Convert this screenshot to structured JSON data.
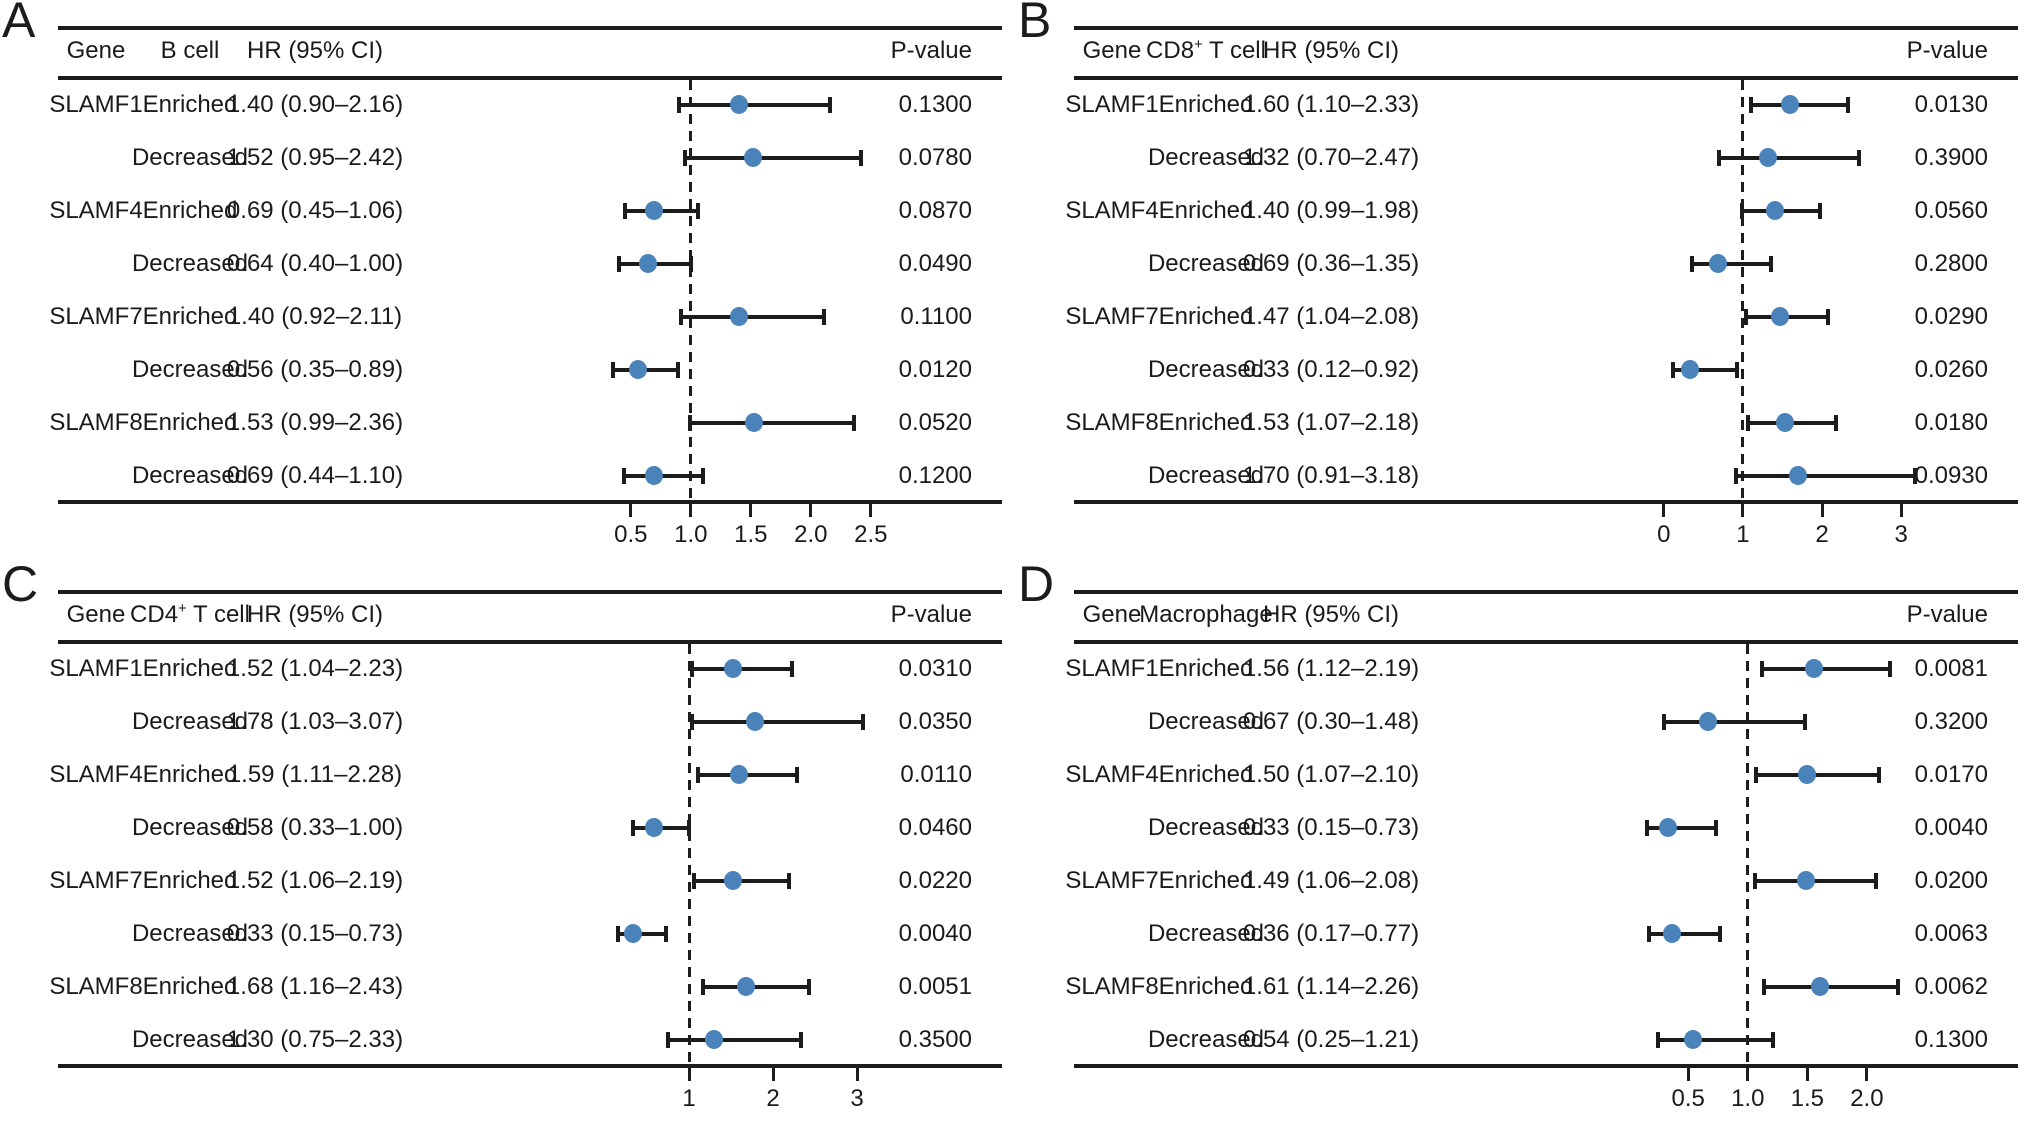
{
  "style": {
    "marker_color": "#4a82ba",
    "line_color": "#1c1c1c",
    "text_color": "#1a1a1a",
    "background": "#ffffff"
  },
  "chart_data": [
    {
      "type": "forest",
      "panel_label": "A",
      "columns": {
        "gene": "Gene",
        "hr": "HR (95% CI)",
        "p": "P-value"
      },
      "cell_parts": [
        "B cell",
        "",
        ""
      ],
      "axis": {
        "xmin": 0.16,
        "xmax": 2.91,
        "reference": 1.0,
        "ticks": [
          0.5,
          1.0,
          1.5,
          2.0,
          2.5
        ],
        "tick_labels": [
          "0.5",
          "1.0",
          "1.5",
          "2.0",
          "2.5"
        ]
      },
      "rows": [
        {
          "gene": "SLAMF1",
          "group": "Enriched",
          "hr": 1.4,
          "lo": 0.9,
          "hi": 2.16,
          "hr_label": "1.40 (0.90–2.16)",
          "p": "0.1300"
        },
        {
          "gene": "",
          "group": "Decreased",
          "hr": 1.52,
          "lo": 0.95,
          "hi": 2.42,
          "hr_label": "1.52 (0.95–2.42)",
          "p": "0.0780"
        },
        {
          "gene": "SLAMF4",
          "group": "Enriched",
          "hr": 0.69,
          "lo": 0.45,
          "hi": 1.06,
          "hr_label": "0.69 (0.45–1.06)",
          "p": "0.0870"
        },
        {
          "gene": "",
          "group": "Decreased",
          "hr": 0.64,
          "lo": 0.4,
          "hi": 1.0,
          "hr_label": "0.64 (0.40–1.00)",
          "p": "0.0490"
        },
        {
          "gene": "SLAMF7",
          "group": "Enriched",
          "hr": 1.4,
          "lo": 0.92,
          "hi": 2.11,
          "hr_label": "1.40 (0.92–2.11)",
          "p": "0.1100"
        },
        {
          "gene": "",
          "group": "Decreased",
          "hr": 0.56,
          "lo": 0.35,
          "hi": 0.89,
          "hr_label": "0.56 (0.35–0.89)",
          "p": "0.0120"
        },
        {
          "gene": "SLAMF8",
          "group": "Enriched",
          "hr": 1.53,
          "lo": 0.99,
          "hi": 2.36,
          "hr_label": "1.53 (0.99–2.36)",
          "p": "0.0520"
        },
        {
          "gene": "",
          "group": "Decreased",
          "hr": 0.69,
          "lo": 0.44,
          "hi": 1.1,
          "hr_label": "0.69 (0.44–1.10)",
          "p": "0.1200"
        }
      ]
    },
    {
      "type": "forest",
      "panel_label": "B",
      "columns": {
        "gene": "Gene",
        "hr": "HR (95% CI)",
        "p": "P-value"
      },
      "cell_parts": [
        "CD8",
        "+",
        " T cell"
      ],
      "axis": {
        "xmin": -0.73,
        "xmax": 3.44,
        "reference": 1.0,
        "ticks": [
          0,
          1,
          2,
          3
        ],
        "tick_labels": [
          "0",
          "1",
          "2",
          "3"
        ]
      },
      "rows": [
        {
          "gene": "SLAMF1",
          "group": "Enriched",
          "hr": 1.6,
          "lo": 1.1,
          "hi": 2.33,
          "hr_label": "1.60 (1.10–2.33)",
          "p": "0.0130"
        },
        {
          "gene": "",
          "group": "Decreased",
          "hr": 1.32,
          "lo": 0.7,
          "hi": 2.47,
          "hr_label": "1.32 (0.70–2.47)",
          "p": "0.3900"
        },
        {
          "gene": "SLAMF4",
          "group": "Enriched",
          "hr": 1.4,
          "lo": 0.99,
          "hi": 1.98,
          "hr_label": "1.40 (0.99–1.98)",
          "p": "0.0560"
        },
        {
          "gene": "",
          "group": "Decreased",
          "hr": 0.69,
          "lo": 0.36,
          "hi": 1.35,
          "hr_label": "0.69 (0.36–1.35)",
          "p": "0.2800"
        },
        {
          "gene": "SLAMF7",
          "group": "Enriched",
          "hr": 1.47,
          "lo": 1.04,
          "hi": 2.08,
          "hr_label": "1.47 (1.04–2.08)",
          "p": "0.0290"
        },
        {
          "gene": "",
          "group": "Decreased",
          "hr": 0.33,
          "lo": 0.12,
          "hi": 0.92,
          "hr_label": "0.33 (0.12–0.92)",
          "p": "0.0260"
        },
        {
          "gene": "SLAMF8",
          "group": "Enriched",
          "hr": 1.53,
          "lo": 1.07,
          "hi": 2.18,
          "hr_label": "1.53 (1.07–2.18)",
          "p": "0.0180"
        },
        {
          "gene": "",
          "group": "Decreased",
          "hr": 1.7,
          "lo": 0.91,
          "hi": 3.18,
          "hr_label": "1.70 (0.91–3.18)",
          "p": "0.0930"
        }
      ]
    },
    {
      "type": "forest",
      "panel_label": "C",
      "columns": {
        "gene": "Gene",
        "hr": "HR (95% CI)",
        "p": "P-value"
      },
      "cell_parts": [
        "CD4",
        "+",
        " T cell"
      ],
      "axis": {
        "xmin": -0.18,
        "xmax": 3.75,
        "reference": 1.0,
        "ticks": [
          1,
          2,
          3
        ],
        "tick_labels": [
          "1",
          "2",
          "3"
        ]
      },
      "rows": [
        {
          "gene": "SLAMF1",
          "group": "Enriched",
          "hr": 1.52,
          "lo": 1.04,
          "hi": 2.23,
          "hr_label": "1.52 (1.04–2.23)",
          "p": "0.0310"
        },
        {
          "gene": "",
          "group": "Decreased",
          "hr": 1.78,
          "lo": 1.03,
          "hi": 3.07,
          "hr_label": "1.78 (1.03–3.07)",
          "p": "0.0350"
        },
        {
          "gene": "SLAMF4",
          "group": "Enriched",
          "hr": 1.59,
          "lo": 1.11,
          "hi": 2.28,
          "hr_label": "1.59 (1.11–2.28)",
          "p": "0.0110"
        },
        {
          "gene": "",
          "group": "Decreased",
          "hr": 0.58,
          "lo": 0.33,
          "hi": 1.0,
          "hr_label": "0.58 (0.33–1.00)",
          "p": "0.0460"
        },
        {
          "gene": "SLAMF7",
          "group": "Enriched",
          "hr": 1.52,
          "lo": 1.06,
          "hi": 2.19,
          "hr_label": "1.52 (1.06–2.19)",
          "p": "0.0220"
        },
        {
          "gene": "",
          "group": "Decreased",
          "hr": 0.33,
          "lo": 0.15,
          "hi": 0.73,
          "hr_label": "0.33 (0.15–0.73)",
          "p": "0.0040"
        },
        {
          "gene": "SLAMF8",
          "group": "Enriched",
          "hr": 1.68,
          "lo": 1.16,
          "hi": 2.43,
          "hr_label": "1.68 (1.16–2.43)",
          "p": "0.0051"
        },
        {
          "gene": "",
          "group": "Decreased",
          "hr": 1.3,
          "lo": 0.75,
          "hi": 2.33,
          "hr_label": "1.30 (0.75–2.33)",
          "p": "0.3500"
        }
      ]
    },
    {
      "type": "forest",
      "panel_label": "D",
      "columns": {
        "gene": "Gene",
        "hr": "HR (95% CI)",
        "p": "P-value"
      },
      "cell_parts": [
        "Macrophage",
        "",
        ""
      ],
      "axis": {
        "xmin": -0.19,
        "xmax": 2.58,
        "reference": 1.0,
        "ticks": [
          0.5,
          1.0,
          1.5,
          2.0
        ],
        "tick_labels": [
          "0.5",
          "1.0",
          "1.5",
          "2.0"
        ]
      },
      "rows": [
        {
          "gene": "SLAMF1",
          "group": "Enriched",
          "hr": 1.56,
          "lo": 1.12,
          "hi": 2.19,
          "hr_label": "1.56 (1.12–2.19)",
          "p": "0.0081"
        },
        {
          "gene": "",
          "group": "Decreased",
          "hr": 0.67,
          "lo": 0.3,
          "hi": 1.48,
          "hr_label": "0.67 (0.30–1.48)",
          "p": "0.3200"
        },
        {
          "gene": "SLAMF4",
          "group": "Enriched",
          "hr": 1.5,
          "lo": 1.07,
          "hi": 2.1,
          "hr_label": "1.50 (1.07–2.10)",
          "p": "0.0170"
        },
        {
          "gene": "",
          "group": "Decreased",
          "hr": 0.33,
          "lo": 0.15,
          "hi": 0.73,
          "hr_label": "0.33 (0.15–0.73)",
          "p": "0.0040"
        },
        {
          "gene": "SLAMF7",
          "group": "Enriched",
          "hr": 1.49,
          "lo": 1.06,
          "hi": 2.08,
          "hr_label": "1.49 (1.06–2.08)",
          "p": "0.0200"
        },
        {
          "gene": "",
          "group": "Decreased",
          "hr": 0.36,
          "lo": 0.17,
          "hi": 0.77,
          "hr_label": "0.36 (0.17–0.77)",
          "p": "0.0063"
        },
        {
          "gene": "SLAMF8",
          "group": "Enriched",
          "hr": 1.61,
          "lo": 1.14,
          "hi": 2.26,
          "hr_label": "1.61 (1.14–2.26)",
          "p": "0.0062"
        },
        {
          "gene": "",
          "group": "Decreased",
          "hr": 0.54,
          "lo": 0.25,
          "hi": 1.21,
          "hr_label": "0.54 (0.25–1.21)",
          "p": "0.1300"
        }
      ]
    }
  ]
}
